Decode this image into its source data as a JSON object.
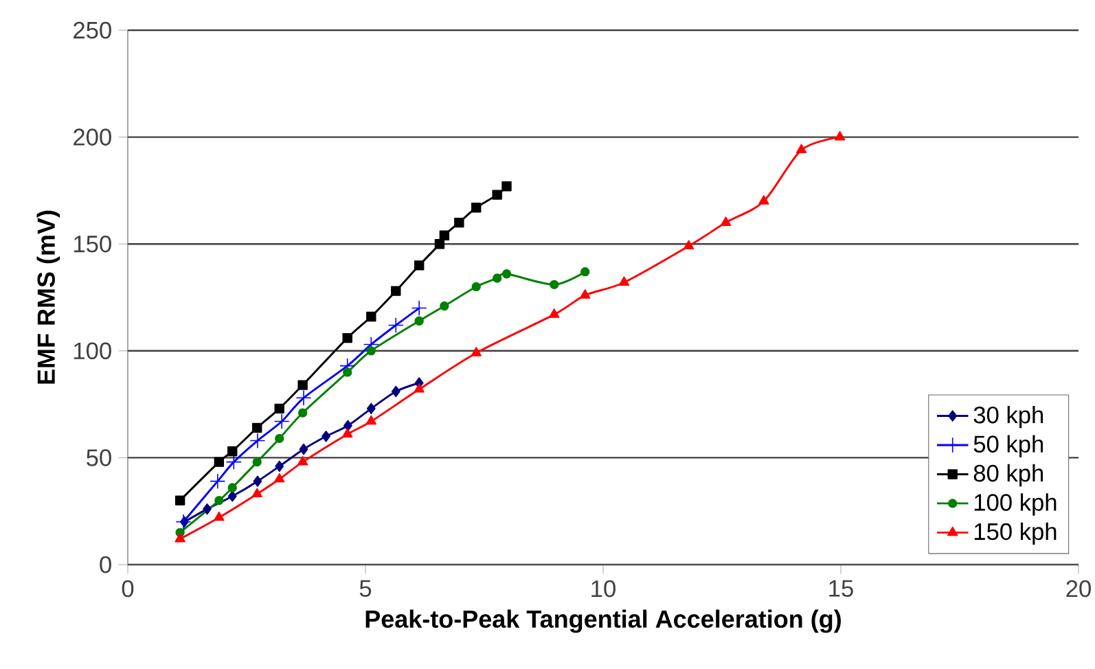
{
  "chart_data": {
    "type": "line",
    "xlabel": "Peak-to-Peak Tangential Acceleration (g)",
    "ylabel": "EMF RMS (mV)",
    "xlim": [
      0,
      20
    ],
    "xticks": [
      0,
      5,
      10,
      15,
      20
    ],
    "ylim": [
      0,
      250
    ],
    "yticks": [
      0,
      50,
      100,
      150,
      200,
      250
    ],
    "grid": "y",
    "legend": "bottom right",
    "line_style": "solid",
    "series": [
      {
        "name": "30 kph",
        "color": "#000080",
        "marker": "diamond",
        "x": [
          1.19,
          1.67,
          2.2,
          2.73,
          3.19,
          3.7,
          4.17,
          4.63,
          5.12,
          5.64,
          6.13
        ],
        "values": [
          20,
          26,
          32,
          39,
          46,
          54,
          60,
          65,
          73,
          81,
          85
        ]
      },
      {
        "name": "50 kph",
        "color": "#0000ff",
        "marker": "cross",
        "x": [
          1.17,
          1.89,
          2.23,
          2.73,
          3.24,
          3.7,
          4.62,
          5.12,
          5.64,
          6.13
        ],
        "values": [
          20,
          39,
          48,
          58,
          67,
          78,
          93,
          103,
          112,
          120
        ]
      },
      {
        "name": "80 kph",
        "color": "#000000",
        "marker": "square",
        "x": [
          1.1,
          1.92,
          2.2,
          2.72,
          3.19,
          3.68,
          4.62,
          5.12,
          5.64,
          6.13,
          6.56,
          6.66,
          6.97,
          7.33,
          7.77,
          7.97
        ],
        "values": [
          30,
          48,
          53,
          64,
          73,
          84,
          106,
          116,
          128,
          140,
          150,
          154,
          160,
          167,
          173,
          177
        ]
      },
      {
        "name": "100 kph",
        "color": "#008000",
        "marker": "circle",
        "x": [
          1.1,
          1.92,
          2.2,
          2.72,
          3.19,
          3.68,
          4.62,
          5.12,
          6.13,
          6.66,
          7.33,
          7.77,
          7.97,
          8.97,
          9.62
        ],
        "values": [
          15,
          30,
          36,
          48,
          59,
          71,
          90,
          100,
          114,
          121,
          130,
          134,
          136,
          131,
          137
        ]
      },
      {
        "name": "150 kph",
        "color": "#ff0000",
        "marker": "triangle",
        "x": [
          1.1,
          1.92,
          2.72,
          3.19,
          3.68,
          4.62,
          5.12,
          6.13,
          7.33,
          8.97,
          9.62,
          10.44,
          11.8,
          12.58,
          13.38,
          14.17,
          14.98
        ],
        "values": [
          12,
          22,
          33,
          40,
          48,
          61,
          67,
          82,
          99,
          117,
          126,
          132,
          149,
          160,
          170,
          194,
          200
        ]
      }
    ]
  }
}
